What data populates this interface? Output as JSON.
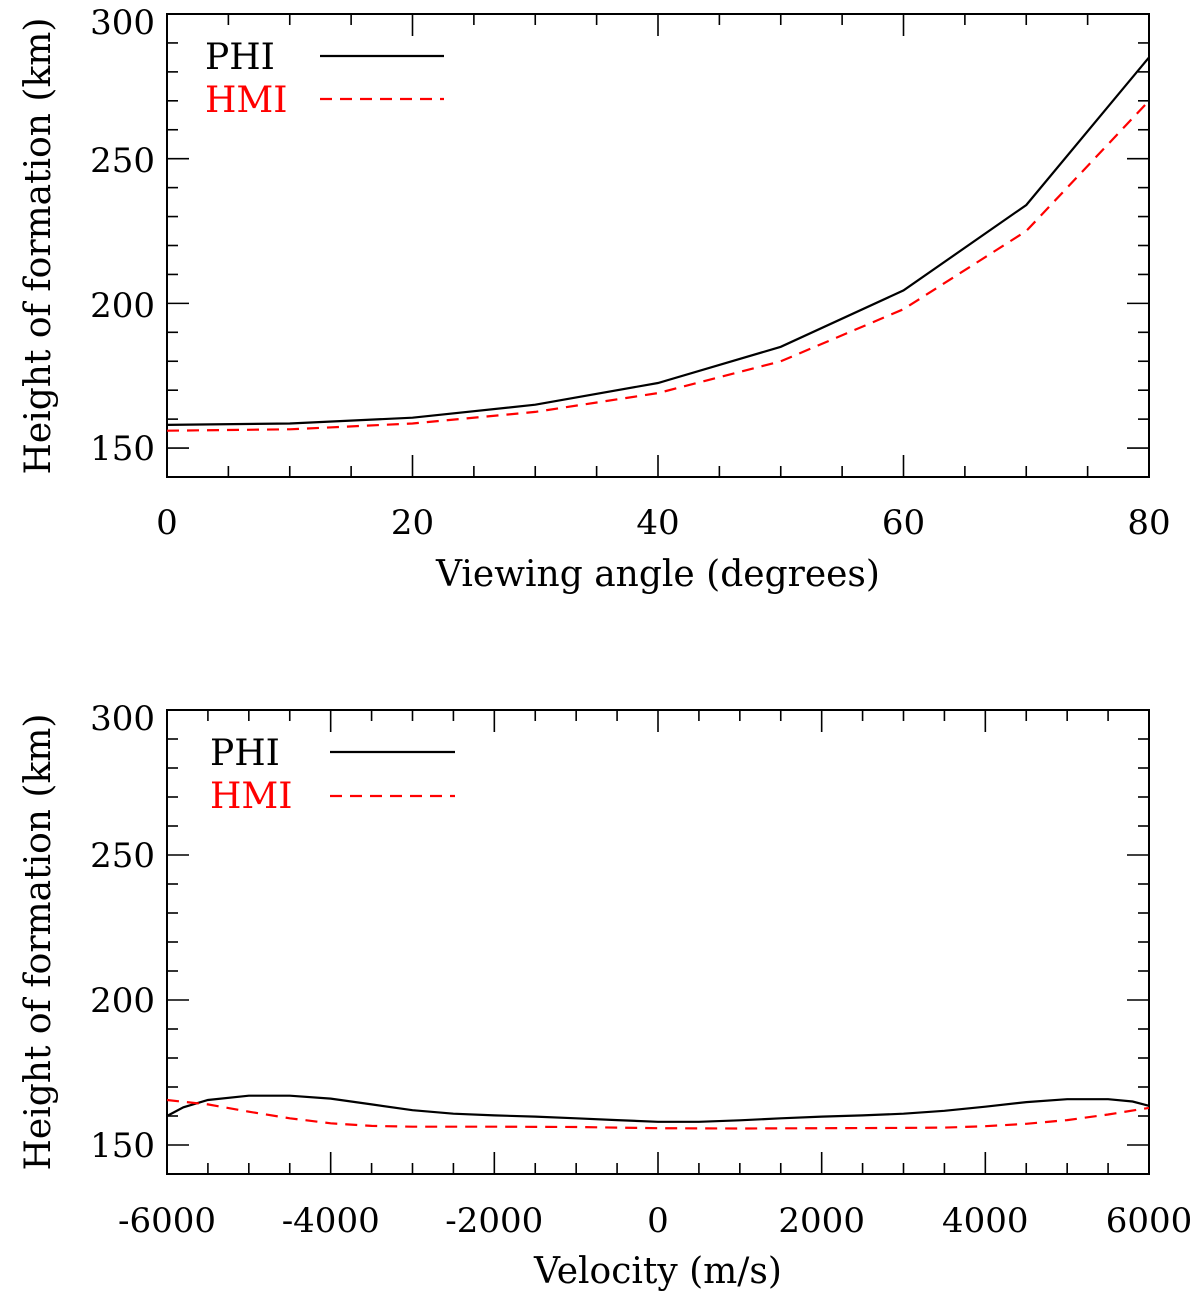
{
  "chart_data": [
    {
      "type": "line",
      "title": "",
      "xlabel": "Viewing angle (degrees)",
      "ylabel": "Height of formation (km)",
      "xlim": [
        0,
        80
      ],
      "ylim": [
        140,
        300
      ],
      "x_major_ticks": [
        0,
        20,
        40,
        60,
        80
      ],
      "x_tick_labels": [
        "0",
        "20",
        "40",
        "60",
        "80"
      ],
      "x_minor_step": 5,
      "y_major_ticks": [
        150,
        200,
        250,
        300
      ],
      "y_tick_labels": [
        "150",
        "200",
        "250",
        "300"
      ],
      "y_minor_step": 10,
      "legend_position": "top-left",
      "series": [
        {
          "name": "PHI",
          "color": "#000000",
          "dash": "solid",
          "x": [
            0,
            10,
            20,
            30,
            40,
            50,
            60,
            70,
            80
          ],
          "values": [
            158,
            158.5,
            160.5,
            165,
            172.5,
            185,
            204.5,
            234,
            285
          ]
        },
        {
          "name": "HMI",
          "color": "#ff0000",
          "dash": "dashed",
          "x": [
            0,
            10,
            20,
            30,
            40,
            50,
            60,
            70,
            80
          ],
          "values": [
            156,
            156.5,
            158.5,
            162.5,
            169,
            180,
            198,
            225,
            270
          ]
        }
      ]
    },
    {
      "type": "line",
      "title": "",
      "xlabel": "Velocity (m/s)",
      "ylabel": "Height of formation (km)",
      "xlim": [
        -6000,
        6000
      ],
      "ylim": [
        140,
        300
      ],
      "x_major_ticks": [
        -6000,
        -4000,
        -2000,
        0,
        2000,
        4000,
        6000
      ],
      "x_tick_labels": [
        "-6000",
        "-4000",
        "-2000",
        "0",
        "2000",
        "4000",
        "6000"
      ],
      "x_minor_step": 500,
      "y_major_ticks": [
        150,
        200,
        250,
        300
      ],
      "y_tick_labels": [
        "150",
        "200",
        "250",
        "300"
      ],
      "y_minor_step": 10,
      "legend_position": "top-left",
      "series": [
        {
          "name": "PHI",
          "color": "#000000",
          "dash": "solid",
          "x": [
            -6000,
            -5800,
            -5500,
            -5000,
            -4500,
            -4000,
            -3500,
            -3000,
            -2500,
            -2000,
            -1500,
            -1000,
            -500,
            0,
            500,
            1000,
            1500,
            2000,
            2500,
            3000,
            3500,
            4000,
            4500,
            5000,
            5500,
            5800,
            6000
          ],
          "values": [
            160,
            163,
            165.5,
            167,
            167,
            166,
            164,
            162,
            160.8,
            160.2,
            159.8,
            159.2,
            158.6,
            158,
            158,
            158.5,
            159.2,
            159.8,
            160.2,
            160.8,
            161.8,
            163.2,
            164.8,
            165.8,
            165.8,
            165,
            163.5
          ]
        },
        {
          "name": "HMI",
          "color": "#ff0000",
          "dash": "dashed",
          "x": [
            -6000,
            -5500,
            -5000,
            -4500,
            -4000,
            -3500,
            -3000,
            -2000,
            -1000,
            0,
            1000,
            2000,
            3000,
            3500,
            4000,
            4500,
            5000,
            5500,
            6000
          ],
          "values": [
            165.5,
            164,
            161.5,
            159.2,
            157.5,
            156.6,
            156.3,
            156.3,
            156.2,
            155.8,
            155.7,
            155.8,
            155.9,
            156,
            156.5,
            157.3,
            158.6,
            160.5,
            162.8
          ]
        }
      ]
    }
  ]
}
